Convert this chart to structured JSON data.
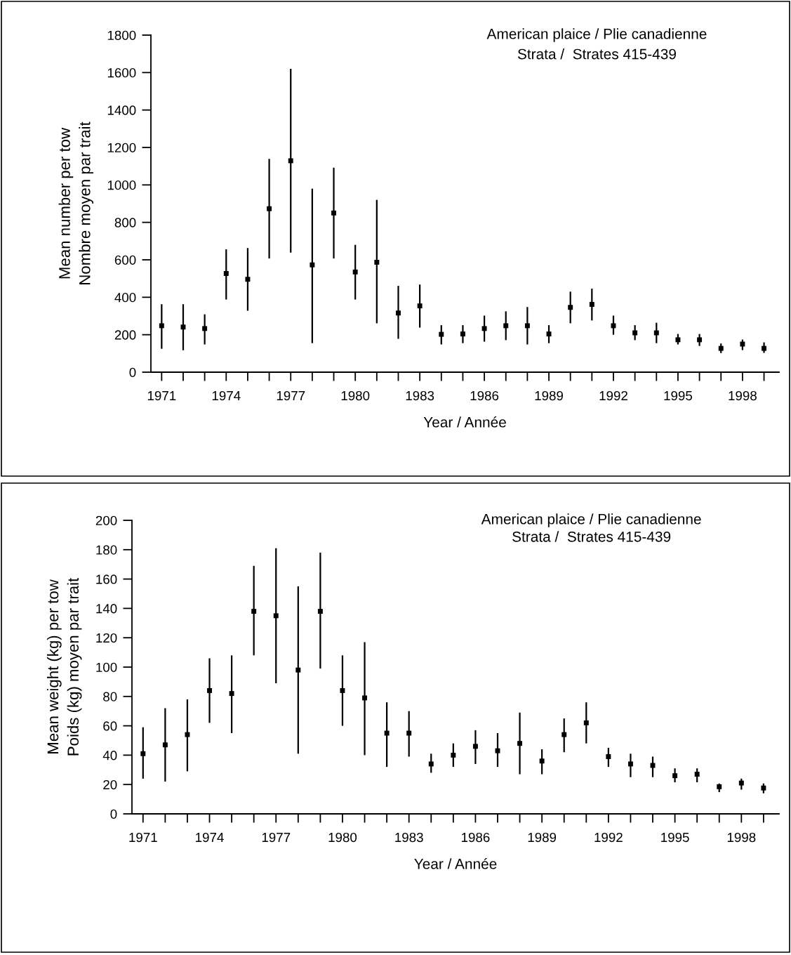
{
  "chart_data": [
    {
      "type": "scatter",
      "title": "American plaice / Plie canadienne",
      "subtitle": "Strata /  Strates 415-439",
      "xlabel": "Year / Année",
      "ylabel": "Mean number per tow\nNombre moyen par trait",
      "x": [
        1971,
        1972,
        1973,
        1974,
        1975,
        1976,
        1977,
        1978,
        1979,
        1980,
        1981,
        1982,
        1983,
        1984,
        1985,
        1986,
        1987,
        1988,
        1989,
        1990,
        1991,
        1992,
        1993,
        1994,
        1995,
        1996,
        1997,
        1998,
        1999
      ],
      "series": [
        {
          "color": "#000000",
          "values": [
            248,
            241,
            233,
            527,
            496,
            873,
            1129,
            573,
            850,
            535,
            587,
            316,
            354,
            202,
            204,
            233,
            248,
            248,
            204,
            346,
            362,
            248,
            210,
            210,
            173,
            173,
            127,
            150,
            127
          ],
          "errors": [
            [
              125,
              363
            ],
            [
              117,
              363
            ],
            [
              148,
              309
            ],
            [
              388,
              656
            ],
            [
              328,
              663
            ],
            [
              607,
              1139
            ],
            [
              638,
              1620
            ],
            [
              155,
              980
            ],
            [
              607,
              1092
            ],
            [
              388,
              680
            ],
            [
              261,
              920
            ],
            [
              178,
              461
            ],
            [
              238,
              468
            ],
            [
              148,
              251
            ],
            [
              155,
              251
            ],
            [
              163,
              302
            ],
            [
              171,
              325
            ],
            [
              148,
              348
            ],
            [
              155,
              251
            ],
            [
              261,
              430
            ],
            [
              276,
              446
            ],
            [
              200,
              302
            ],
            [
              171,
              251
            ],
            [
              155,
              264
            ],
            [
              148,
              204
            ],
            [
              140,
              204
            ],
            [
              102,
              153
            ],
            [
              118,
              174
            ],
            [
              103,
              159
            ]
          ]
        }
      ],
      "xlim": [
        1970.5,
        1999.7
      ],
      "xticks": [
        1971,
        {
          "value": 1972,
          "label": null
        },
        {
          "value": 1973,
          "label": null
        },
        1974,
        {
          "value": 1975,
          "label": null
        },
        {
          "value": 1976,
          "label": null
        },
        1977,
        {
          "value": 1978,
          "label": null
        },
        {
          "value": 1979,
          "label": null
        },
        1980,
        {
          "value": 1981,
          "label": null
        },
        {
          "value": 1982,
          "label": null
        },
        1983,
        {
          "value": 1984,
          "label": null
        },
        {
          "value": 1985,
          "label": null
        },
        1986,
        {
          "value": 1987,
          "label": null
        },
        {
          "value": 1988,
          "label": null
        },
        1989,
        {
          "value": 1990,
          "label": null
        },
        {
          "value": 1991,
          "label": null
        },
        1992,
        {
          "value": 1993,
          "label": null
        },
        {
          "value": 1994,
          "label": null
        },
        1995,
        {
          "value": 1996,
          "label": null
        },
        {
          "value": 1997,
          "label": null
        },
        1998,
        {
          "value": 1999,
          "label": null
        }
      ],
      "ylim": [
        0,
        1800
      ],
      "yticks": [
        0,
        200,
        400,
        600,
        800,
        1000,
        1200,
        1400,
        1600,
        1800
      ],
      "marker": "square",
      "grid": false,
      "legend": false
    },
    {
      "type": "scatter",
      "title": "American plaice / Plie canadienne",
      "subtitle": "Strata /  Strates 415-439",
      "xlabel": "Year / Année",
      "ylabel": "Mean weight (kg) per tow\nPoids (kg) moyen par trait",
      "x": [
        1971,
        1972,
        1973,
        1974,
        1975,
        1976,
        1977,
        1978,
        1979,
        1980,
        1981,
        1982,
        1983,
        1984,
        1985,
        1986,
        1987,
        1988,
        1989,
        1990,
        1991,
        1992,
        1993,
        1994,
        1995,
        1996,
        1997,
        1998,
        1999
      ],
      "series": [
        {
          "color": "#000000",
          "values": [
            41,
            47,
            54,
            84,
            82,
            138,
            135,
            98,
            138,
            84,
            79,
            55,
            55,
            34,
            40,
            46,
            43,
            48,
            36,
            54,
            62,
            39,
            34,
            33,
            26,
            27,
            18.5,
            21,
            17.6
          ],
          "errors": [
            [
              24,
              59
            ],
            [
              22,
              72
            ],
            [
              29,
              78
            ],
            [
              62,
              106
            ],
            [
              55,
              108
            ],
            [
              108,
              169
            ],
            [
              89,
              181
            ],
            [
              41,
              155
            ],
            [
              99,
              178
            ],
            [
              60,
              108
            ],
            [
              40,
              117
            ],
            [
              32,
              76
            ],
            [
              39,
              70
            ],
            [
              28,
              41
            ],
            [
              32,
              48
            ],
            [
              34,
              57
            ],
            [
              32,
              55
            ],
            [
              27,
              69
            ],
            [
              27,
              44
            ],
            [
              42,
              65
            ],
            [
              48,
              76
            ],
            [
              32,
              45
            ],
            [
              25,
              41
            ],
            [
              25,
              39
            ],
            [
              21.5,
              31
            ],
            [
              21.5,
              31
            ],
            [
              14.8,
              20.7
            ],
            [
              16.5,
              24
            ],
            [
              14,
              20.7
            ]
          ]
        }
      ],
      "xlim": [
        1970.5,
        1999.7
      ],
      "xticks": [
        1971,
        {
          "value": 1972,
          "label": null
        },
        {
          "value": 1973,
          "label": null
        },
        1974,
        {
          "value": 1975,
          "label": null
        },
        {
          "value": 1976,
          "label": null
        },
        1977,
        {
          "value": 1978,
          "label": null
        },
        {
          "value": 1979,
          "label": null
        },
        1980,
        {
          "value": 1981,
          "label": null
        },
        {
          "value": 1982,
          "label": null
        },
        1983,
        {
          "value": 1984,
          "label": null
        },
        {
          "value": 1985,
          "label": null
        },
        1986,
        {
          "value": 1987,
          "label": null
        },
        {
          "value": 1988,
          "label": null
        },
        1989,
        {
          "value": 1990,
          "label": null
        },
        {
          "value": 1991,
          "label": null
        },
        1992,
        {
          "value": 1993,
          "label": null
        },
        {
          "value": 1994,
          "label": null
        },
        1995,
        {
          "value": 1996,
          "label": null
        },
        {
          "value": 1997,
          "label": null
        },
        1998,
        {
          "value": 1999,
          "label": null
        }
      ],
      "ylim": [
        0,
        200
      ],
      "yticks": [
        0,
        20,
        40,
        60,
        80,
        100,
        120,
        140,
        160,
        180,
        200
      ],
      "marker": "square",
      "grid": false,
      "legend": false
    }
  ]
}
